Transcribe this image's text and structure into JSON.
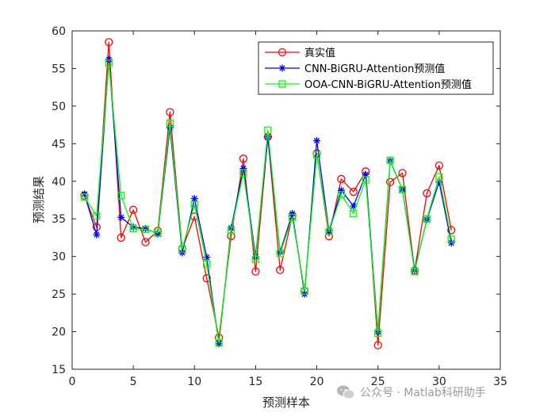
{
  "chart_data": {
    "type": "line",
    "xlabel": "预测样本",
    "ylabel": "预测结果",
    "xlim": [
      0,
      35
    ],
    "ylim": [
      15,
      60
    ],
    "xticks": [
      0,
      5,
      10,
      15,
      20,
      25,
      30,
      35
    ],
    "yticks": [
      15,
      20,
      25,
      30,
      35,
      40,
      45,
      50,
      55,
      60
    ],
    "grid": false,
    "legend_position": "top-right",
    "x": [
      1,
      2,
      3,
      4,
      5,
      6,
      7,
      8,
      9,
      10,
      11,
      12,
      13,
      14,
      15,
      16,
      17,
      18,
      19,
      20,
      21,
      22,
      23,
      24,
      25,
      26,
      27,
      28,
      29,
      30,
      31
    ],
    "series": [
      {
        "name": "真实值",
        "color": "#ff0000",
        "marker": "circle",
        "values": [
          38.1,
          33.9,
          58.5,
          32.5,
          36.2,
          31.9,
          33.4,
          49.2,
          31.0,
          35.3,
          27.1,
          19.2,
          32.7,
          43.0,
          28.0,
          45.9,
          28.2,
          35.4,
          25.4,
          43.7,
          32.7,
          40.3,
          38.6,
          41.3,
          18.2,
          39.9,
          41.1,
          28.1,
          38.4,
          42.1,
          33.5
        ]
      },
      {
        "name": "CNN-BiGRU-Attention预测值",
        "color": "#0000ff",
        "marker": "star",
        "values": [
          38.3,
          32.9,
          56.2,
          35.2,
          33.9,
          33.7,
          33.0,
          47.1,
          30.5,
          37.7,
          29.9,
          18.4,
          33.8,
          41.7,
          30.0,
          45.9,
          30.6,
          35.7,
          25.0,
          45.4,
          33.4,
          38.8,
          36.7,
          40.9,
          20.0,
          42.7,
          38.9,
          28.2,
          34.9,
          39.9,
          31.8
        ]
      },
      {
        "name": "OOA-CNN-BiGRU-Attention预测值",
        "color": "#00ff00",
        "marker": "square",
        "values": [
          37.9,
          35.4,
          55.7,
          38.1,
          33.7,
          33.6,
          33.1,
          47.7,
          31.0,
          36.9,
          29.0,
          18.5,
          33.5,
          41.1,
          29.6,
          46.8,
          30.4,
          35.2,
          25.4,
          43.5,
          33.3,
          38.2,
          35.7,
          40.2,
          19.8,
          42.8,
          38.9,
          28.0,
          35.0,
          40.6,
          32.3
        ]
      }
    ]
  },
  "watermark": {
    "text": "公众号 · Matlab科研助手",
    "icon": "wechat-icon"
  }
}
